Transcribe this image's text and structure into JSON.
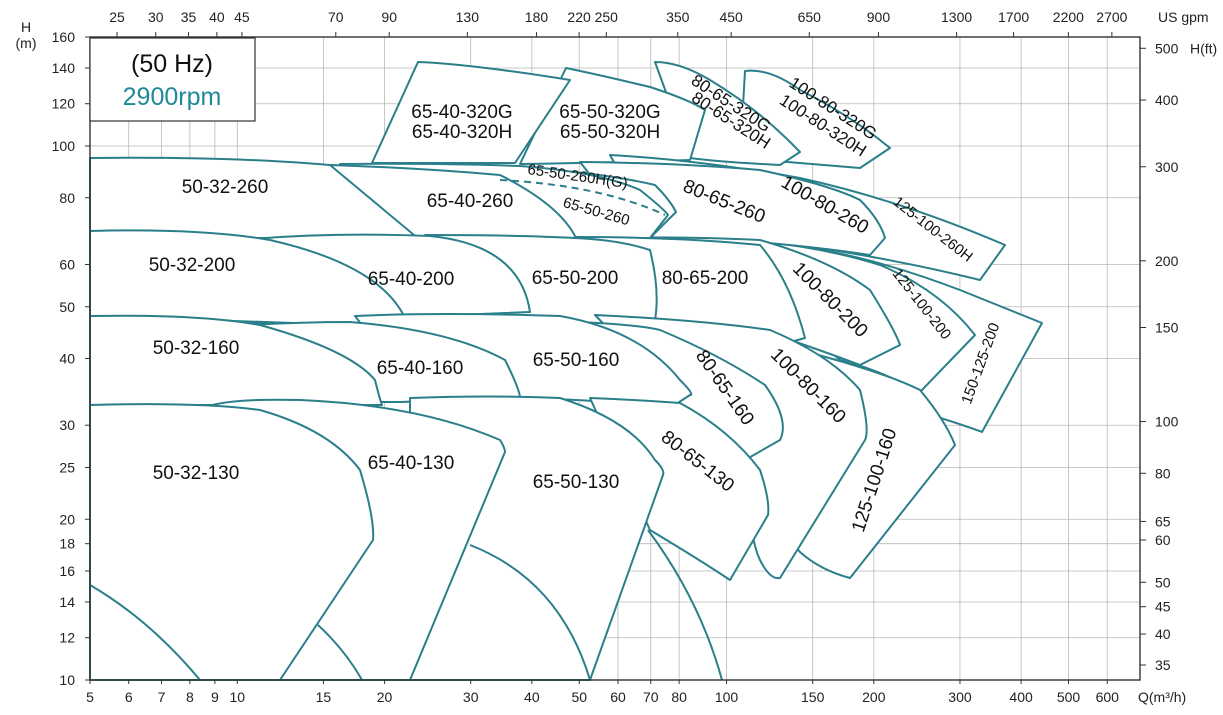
{
  "chart_data": {
    "type": "line",
    "title": "",
    "xlabel": "Q(m³/h)",
    "ylabel_left": "H",
    "ylabel_left_unit": "(m)",
    "ylabel_right": "H(ft)",
    "xlabel_top": "US gpm",
    "x_scale": "log",
    "y_scale": "log",
    "xlim": [
      5,
      700
    ],
    "ylim": [
      10,
      160
    ],
    "legend": {
      "frequency": "(50 Hz)",
      "speed": "2900rpm",
      "speed_color": "#1c8a99"
    },
    "curve_color": "#2a7f8b",
    "x_ticks": [
      "5",
      "6",
      "7",
      "8",
      "9",
      "10",
      "15",
      "20",
      "30",
      "40",
      "50",
      "60",
      "70",
      "80",
      "100",
      "150",
      "200",
      "300",
      "400",
      "500",
      "600"
    ],
    "y_ticks": [
      "10",
      "12",
      "14",
      "16",
      "18",
      "20",
      "25",
      "30",
      "40",
      "50",
      "60",
      "80",
      "100",
      "120",
      "140",
      "160"
    ],
    "top_ticks": [
      "25",
      "30",
      "35",
      "40",
      "45",
      "70",
      "90",
      "130",
      "180",
      "220",
      "250",
      "350",
      "450",
      "650",
      "900",
      "1300",
      "1700",
      "2200",
      "2700"
    ],
    "right_ticks": [
      "35",
      "40",
      "45",
      "50",
      "60",
      "65",
      "80",
      "100",
      "150",
      "200",
      "300",
      "400",
      "500"
    ],
    "series": [
      {
        "name": "65-40-320G",
        "label2": "65-40-320H"
      },
      {
        "name": "65-50-320G",
        "label2": "65-50-320H"
      },
      {
        "name": "80-65-320G",
        "label2": "80-65-320H"
      },
      {
        "name": "100-80-320G",
        "label2": "100-80-320H"
      },
      {
        "name": "50-32-260"
      },
      {
        "name": "65-40-260"
      },
      {
        "name": "65-50-260H(G)",
        "label2": "65-50-260"
      },
      {
        "name": "80-65-260"
      },
      {
        "name": "100-80-260"
      },
      {
        "name": "125-100-260H"
      },
      {
        "name": "50-32-200"
      },
      {
        "name": "65-40-200"
      },
      {
        "name": "65-50-200"
      },
      {
        "name": "80-65-200"
      },
      {
        "name": "100-80-200"
      },
      {
        "name": "125-100-200"
      },
      {
        "name": "150-125-200"
      },
      {
        "name": "50-32-160"
      },
      {
        "name": "65-40-160"
      },
      {
        "name": "65-50-160"
      },
      {
        "name": "80-65-160"
      },
      {
        "name": "100-80-160"
      },
      {
        "name": "125-100-160"
      },
      {
        "name": "50-32-130"
      },
      {
        "name": "65-40-130"
      },
      {
        "name": "65-50-130"
      },
      {
        "name": "80-65-130"
      }
    ]
  }
}
